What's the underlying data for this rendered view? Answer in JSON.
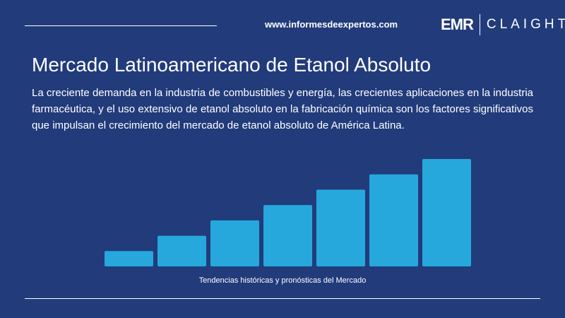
{
  "header": {
    "url": "www.informesdeexpertos.com",
    "logo_left": "EMR",
    "logo_right": "CLAIGHT"
  },
  "title": "Mercado Latinoamericano de Etanol Absoluto",
  "description": "La creciente demanda en la industria de combustibles y energía, las crecientes aplicaciones en la industria farmacéutica, y el uso extensivo de etanol absoluto en la fabricación química son los factores significativos que impulsan el crecimiento del mercado de etanol absoluto de América Latina.",
  "chart_data": {
    "type": "bar",
    "caption": "Tendencias históricas y pronósticas del Mercado",
    "categories": [
      null,
      null,
      null,
      null,
      null,
      null,
      null
    ],
    "values": [
      1,
      2,
      3,
      4,
      5,
      6,
      7
    ],
    "color": "#27a8dc",
    "ylim": [
      0,
      7
    ],
    "grid": false
  }
}
